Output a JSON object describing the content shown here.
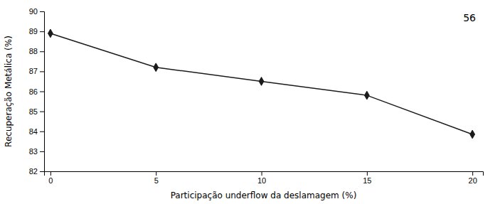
{
  "chart_data": {
    "type": "line",
    "x": [
      0,
      5,
      10,
      15,
      20
    ],
    "values": [
      88.9,
      87.2,
      86.5,
      85.8,
      83.85
    ],
    "xlim": [
      -0.3,
      20.5
    ],
    "ylim": [
      82,
      90
    ],
    "xticks": [
      0,
      5,
      10,
      15,
      20
    ],
    "yticks": [
      82,
      83,
      84,
      85,
      86,
      87,
      88,
      89,
      90
    ],
    "xlabel": "Participação underflow da deslamagem (%)",
    "ylabel": "Recuperação Metálica (%)",
    "annotation": "56",
    "color": "#1a1a1a",
    "marker": "diamond",
    "grid": false
  }
}
